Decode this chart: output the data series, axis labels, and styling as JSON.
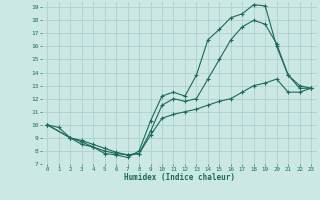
{
  "xlabel": "Humidex (Indice chaleur)",
  "bg_color": "#cce8e4",
  "grid_color": "#aacccc",
  "line_color": "#1a6b5a",
  "xlim": [
    -0.5,
    23.5
  ],
  "ylim": [
    7,
    19.4
  ],
  "xticks": [
    0,
    1,
    2,
    3,
    4,
    5,
    6,
    7,
    8,
    9,
    10,
    11,
    12,
    13,
    14,
    15,
    16,
    17,
    18,
    19,
    20,
    21,
    22,
    23
  ],
  "yticks": [
    7,
    8,
    9,
    10,
    11,
    12,
    13,
    14,
    15,
    16,
    17,
    18,
    19
  ],
  "line1_x": [
    0,
    1,
    2,
    3,
    4,
    5,
    6,
    7,
    8,
    9,
    10,
    11,
    12,
    13,
    14,
    15,
    16,
    17,
    18,
    19,
    20,
    21,
    22,
    23
  ],
  "line1_y": [
    10.0,
    9.8,
    9.0,
    8.5,
    8.3,
    7.8,
    7.7,
    7.5,
    8.0,
    10.3,
    12.2,
    12.5,
    12.2,
    13.8,
    16.5,
    17.3,
    18.2,
    18.5,
    19.2,
    19.1,
    16.0,
    13.8,
    13.0,
    12.8
  ],
  "line2_x": [
    0,
    2,
    3,
    4,
    5,
    6,
    7,
    8,
    9,
    10,
    11,
    12,
    13,
    14,
    15,
    16,
    17,
    18,
    19,
    20,
    21,
    22,
    23
  ],
  "line2_y": [
    10.0,
    9.0,
    8.8,
    8.5,
    8.2,
    7.9,
    7.7,
    7.8,
    9.5,
    11.5,
    12.0,
    11.8,
    12.0,
    13.5,
    15.0,
    16.5,
    17.5,
    18.0,
    17.7,
    16.2,
    13.8,
    12.8,
    12.8
  ],
  "line3_x": [
    0,
    2,
    3,
    4,
    5,
    6,
    7,
    8,
    9,
    10,
    11,
    12,
    13,
    14,
    15,
    16,
    17,
    18,
    19,
    20,
    21,
    22,
    23
  ],
  "line3_y": [
    10.0,
    9.0,
    8.7,
    8.3,
    8.0,
    7.8,
    7.7,
    7.8,
    9.2,
    10.5,
    10.8,
    11.0,
    11.2,
    11.5,
    11.8,
    12.0,
    12.5,
    13.0,
    13.2,
    13.5,
    12.5,
    12.5,
    12.8
  ]
}
